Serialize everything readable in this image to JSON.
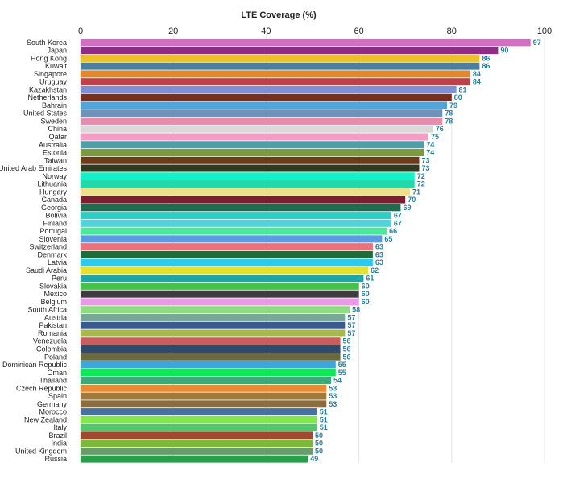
{
  "chart_data": {
    "type": "bar",
    "orientation": "horizontal",
    "title": "LTE Coverage (%)",
    "xlabel": "",
    "ylabel": "",
    "xlim": [
      0,
      100
    ],
    "x_ticks": [
      0,
      20,
      40,
      60,
      80,
      100
    ],
    "x_axis_position": "top",
    "grid": true,
    "legend": "none",
    "categories": [
      "South Korea",
      "Japan",
      "Hong Kong",
      "Kuwait",
      "Singapore",
      "Uruguay",
      "Kazakhstan",
      "Netherlands",
      "Bahrain",
      "United States",
      "Sweden",
      "China",
      "Qatar",
      "Australia",
      "Estonia",
      "Taiwan",
      "United Arab Emirates",
      "Norway",
      "Lithuania",
      "Hungary",
      "Canada",
      "Georgia",
      "Bolivia",
      "Finland",
      "Portugal",
      "Slovenia",
      "Switzerland",
      "Denmark",
      "Latvia",
      "Saudi Arabia",
      "Peru",
      "Slovakia",
      "Mexico",
      "Belgium",
      "South Africa",
      "Austria",
      "Pakistan",
      "Romania",
      "Venezuela",
      "Colombia",
      "Poland",
      "Dominican Republic",
      "Oman",
      "Thailand",
      "Czech Republic",
      "Spain",
      "Germany",
      "Morocco",
      "New Zealand",
      "Italy",
      "Brazil",
      "India",
      "United Kingdom",
      "Russia"
    ],
    "values": [
      97,
      90,
      86,
      86,
      84,
      84,
      81,
      80,
      79,
      78,
      78,
      76,
      75,
      74,
      74,
      73,
      73,
      72,
      72,
      71,
      70,
      69,
      67,
      67,
      66,
      65,
      63,
      63,
      63,
      62,
      61,
      60,
      60,
      60,
      58,
      57,
      57,
      57,
      56,
      56,
      56,
      55,
      55,
      54,
      53,
      53,
      53,
      51,
      51,
      51,
      50,
      50,
      50,
      49
    ],
    "bar_colors": [
      "#d16fc0",
      "#8c2e86",
      "#e9c12a",
      "#4a7fa0",
      "#e3862c",
      "#c0404a",
      "#7f8fd6",
      "#7a2d22",
      "#4da6de",
      "#6f93b8",
      "#e48eae",
      "#d9d9d9",
      "#f29dc6",
      "#4ca0a6",
      "#7a9a3c",
      "#6b3d16",
      "#2f3b1f",
      "#13f2c8",
      "#21d9ab",
      "#ece08c",
      "#7a1f30",
      "#1f6b4f",
      "#2bd0c2",
      "#4fd4db",
      "#4de89a",
      "#5a9ce0",
      "#e8737a",
      "#1f6b3a",
      "#2ec9ee",
      "#e8e02f",
      "#1fa6a6",
      "#44c24a",
      "#3d3d3d",
      "#e89be4",
      "#8fdc82",
      "#79a896",
      "#3a5a8e",
      "#a8b84a",
      "#cf5c5c",
      "#2f4a6c",
      "#6b6b3d",
      "#3fa6d9",
      "#11e65a",
      "#3ea87a",
      "#e98a34",
      "#a07a3a",
      "#8c6e3e",
      "#4a6fa5",
      "#82e84a",
      "#4fc86a",
      "#a1492e",
      "#7cb83a",
      "#6a9c6a",
      "#2a9e4a"
    ]
  }
}
